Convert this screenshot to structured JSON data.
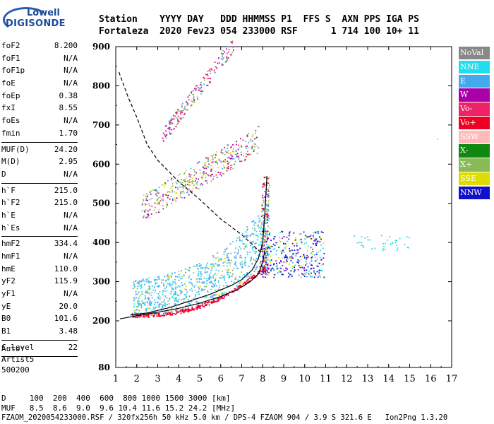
{
  "logo": {
    "line1": "Lowell",
    "line2": "DIGISONDE"
  },
  "header": {
    "line1": "Station    YYYY DAY   DDD HHMMSS P1  FFS S  AXN PPS IGA PS",
    "line2": "Fortaleza  2020 Fev23 054 233000 RSF      1 714 100 10+ 11"
  },
  "params": [
    [
      {
        "k": "foF2",
        "v": "8.200"
      },
      {
        "k": "foF1",
        "v": "N/A"
      },
      {
        "k": "foF1p",
        "v": "N/A"
      },
      {
        "k": "foE",
        "v": "N/A"
      },
      {
        "k": "foEp",
        "v": "0.38"
      },
      {
        "k": "fxI",
        "v": "8.55"
      },
      {
        "k": "foEs",
        "v": "N/A"
      },
      {
        "k": "fmin",
        "v": "1.70"
      }
    ],
    [
      {
        "k": "MUF(D)",
        "v": "24.20"
      },
      {
        "k": "M(D)",
        "v": "2.95"
      },
      {
        "k": "D",
        "v": "N/A"
      }
    ],
    [
      {
        "k": "h`F",
        "v": "215.0"
      },
      {
        "k": "h`F2",
        "v": "215.0"
      },
      {
        "k": "h`E",
        "v": "N/A"
      },
      {
        "k": "h`Es",
        "v": "N/A"
      }
    ],
    [
      {
        "k": "hmF2",
        "v": "334.4"
      },
      {
        "k": "hmF1",
        "v": "N/A"
      },
      {
        "k": "hmE",
        "v": "110.0"
      },
      {
        "k": "yF2",
        "v": "115.9"
      },
      {
        "k": "yF1",
        "v": "N/A"
      },
      {
        "k": "yE",
        "v": "20.0"
      },
      {
        "k": "B0",
        "v": "101.6"
      },
      {
        "k": "B1",
        "v": "3.48"
      }
    ],
    [
      {
        "k": "C-level",
        "v": "22"
      }
    ]
  ],
  "auto": {
    "line1": "Auto:",
    "line2": "Artist5",
    "line3": "500200"
  },
  "bottom": {
    "d_row": "D     100  200  400  600  800 1000 1500 3000 [km]",
    "muf_row": "MUF   8.5  8.6  9.0  9.6 10.4 11.6 15.2 24.2 [MHz]",
    "footer": "FZAOM_2020054233000.RSF / 320fx256h 50 kHz 5.0 km / DPS-4 FZAOM 904 / 3.9 S 321.6 E   Ion2Png 1.3.20"
  },
  "legend": [
    {
      "label": "NoVal",
      "color": "#888888"
    },
    {
      "label": "NNE",
      "color": "#22ddee"
    },
    {
      "label": "E",
      "color": "#44aaee"
    },
    {
      "label": "W",
      "color": "#aa00aa"
    },
    {
      "label": "Vo-",
      "color": "#ee2266"
    },
    {
      "label": "Vo+",
      "color": "#ee0022"
    },
    {
      "label": "SSW",
      "color": "#ffbbbb"
    },
    {
      "label": "X-",
      "color": "#118811"
    },
    {
      "label": "X+",
      "color": "#88bb55"
    },
    {
      "label": "SSE",
      "color": "#dddd00"
    },
    {
      "label": "NNW",
      "color": "#1111cc"
    }
  ],
  "chart_data": {
    "type": "scatter",
    "title": "",
    "xlabel": "",
    "ylabel": "",
    "xlim": [
      1,
      17
    ],
    "ylim": [
      80,
      900
    ],
    "x_ticks": [
      1,
      2,
      3,
      4,
      5,
      6,
      7,
      8,
      9,
      10,
      11,
      12,
      13,
      14,
      15,
      16,
      17
    ],
    "y_ticks": [
      80,
      200,
      300,
      400,
      500,
      600,
      700,
      800,
      900
    ],
    "series": [
      {
        "name": "O-trace",
        "style": "solid",
        "color": "#000000",
        "x": [
          1.7,
          2.5,
          3.5,
          4.5,
          5.5,
          6.5,
          7.0,
          7.5,
          7.8,
          8.0,
          8.1,
          8.2
        ],
        "y": [
          215,
          220,
          233,
          250,
          268,
          290,
          305,
          330,
          360,
          400,
          470,
          570
        ]
      },
      {
        "name": "lower-profile",
        "style": "solid",
        "color": "#000000",
        "x": [
          1.2,
          2.0,
          3.0,
          4.0,
          5.0,
          6.0,
          6.8,
          7.4,
          7.8,
          8.0,
          8.1
        ],
        "y": [
          205,
          213,
          222,
          232,
          245,
          262,
          280,
          300,
          320,
          350,
          380
        ]
      },
      {
        "name": "MUF-curve",
        "style": "dashed",
        "color": "#000000",
        "x": [
          1.15,
          1.6,
          2.0,
          2.5,
          3.0,
          4.0,
          5.0,
          6.0,
          7.0,
          8.0
        ],
        "y": [
          835,
          770,
          720,
          650,
          610,
          555,
          510,
          460,
          420,
          370
        ]
      }
    ]
  }
}
